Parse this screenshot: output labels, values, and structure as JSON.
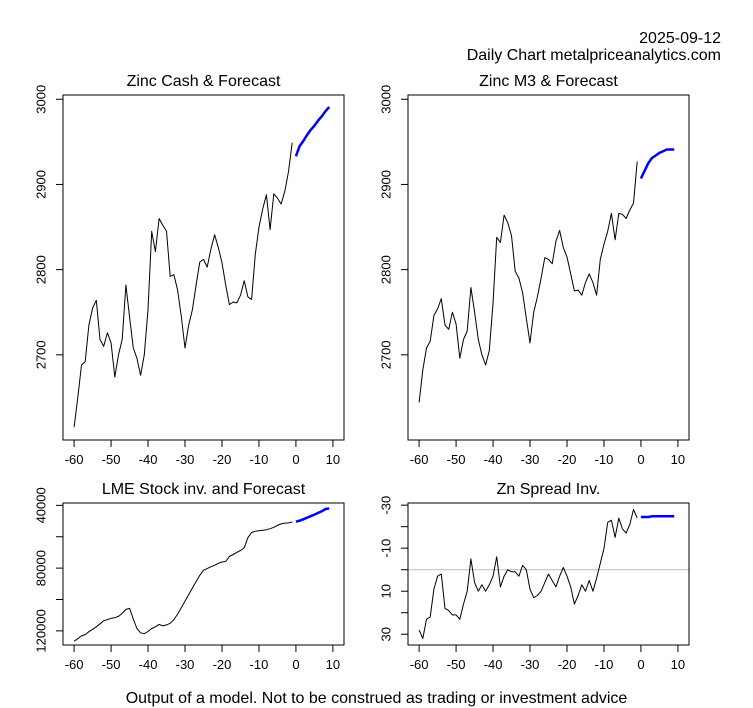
{
  "header": {
    "date": "2025-09-12",
    "subtitle": "Daily Chart metalpriceanalytics.com"
  },
  "footer": "Output of a model. Not to be construed as trading or investment advice",
  "colors": {
    "history": "#000000",
    "forecast": "#0000ff",
    "zero_line": "#bebebe",
    "axis": "#000000"
  },
  "chart_data": [
    {
      "id": "zinc-cash",
      "type": "line",
      "title": "Zinc Cash & Forecast",
      "xlabel": "",
      "ylabel": "",
      "xlim": [
        -63,
        13
      ],
      "ylim": [
        2600,
        3005
      ],
      "inverted_y": false,
      "xticks": [
        -60,
        -50,
        -40,
        -30,
        -20,
        -10,
        0,
        10
      ],
      "yticks": [
        2700,
        2800,
        2900,
        3000
      ],
      "ytick_labels": [
        "2700",
        "2800",
        "2900",
        "3000"
      ],
      "grid": false,
      "series": [
        {
          "name": "history",
          "color": "#000000",
          "x": [
            -60,
            -59,
            -58,
            -57,
            -56,
            -55,
            -54,
            -53,
            -52,
            -51,
            -50,
            -49,
            -48,
            -47,
            -46,
            -45,
            -44,
            -43,
            -42,
            -41,
            -40,
            -39,
            -38,
            -37,
            -36,
            -35,
            -34,
            -33,
            -32,
            -31,
            -30,
            -29,
            -28,
            -27,
            -26,
            -25,
            -24,
            -23,
            -22,
            -21,
            -20,
            -19,
            -18,
            -17,
            -16,
            -15,
            -14,
            -13,
            -12,
            -11,
            -10,
            -9,
            -8,
            -7,
            -6,
            -5,
            -4,
            -3,
            -2,
            -1
          ],
          "y": [
            2615,
            2650,
            2688,
            2692,
            2735,
            2755,
            2764,
            2718,
            2710,
            2726,
            2714,
            2674,
            2700,
            2718,
            2782,
            2744,
            2708,
            2696,
            2676,
            2700,
            2753,
            2845,
            2821,
            2860,
            2852,
            2845,
            2792,
            2794,
            2776,
            2745,
            2708,
            2735,
            2753,
            2782,
            2809,
            2812,
            2803,
            2824,
            2841,
            2826,
            2808,
            2782,
            2759,
            2762,
            2761,
            2770,
            2787,
            2768,
            2765,
            2818,
            2850,
            2871,
            2888,
            2847,
            2889,
            2884,
            2877,
            2892,
            2915,
            2949
          ]
        },
        {
          "name": "forecast",
          "color": "#0000ff",
          "x": [
            0,
            1,
            2,
            3,
            4,
            5,
            6,
            7,
            8,
            9
          ],
          "y": [
            2933,
            2945,
            2951,
            2958,
            2964,
            2969,
            2975,
            2980,
            2986,
            2991
          ]
        }
      ]
    },
    {
      "id": "zinc-m3",
      "type": "line",
      "title": "Zinc M3 & Forecast",
      "xlabel": "",
      "ylabel": "",
      "xlim": [
        -63,
        13
      ],
      "ylim": [
        2600,
        3005
      ],
      "inverted_y": false,
      "xticks": [
        -60,
        -50,
        -40,
        -30,
        -20,
        -10,
        0,
        10
      ],
      "yticks": [
        2700,
        2800,
        2900,
        3000
      ],
      "ytick_labels": [
        "2700",
        "2800",
        "2900",
        "3000"
      ],
      "grid": false,
      "series": [
        {
          "name": "history",
          "color": "#000000",
          "x": [
            -60,
            -59,
            -58,
            -57,
            -56,
            -55,
            -54,
            -53,
            -52,
            -51,
            -50,
            -49,
            -48,
            -47,
            -46,
            -45,
            -44,
            -43,
            -42,
            -41,
            -40,
            -39,
            -38,
            -37,
            -36,
            -35,
            -34,
            -33,
            -32,
            -31,
            -30,
            -29,
            -28,
            -27,
            -26,
            -25,
            -24,
            -23,
            -22,
            -21,
            -20,
            -19,
            -18,
            -17,
            -16,
            -15,
            -14,
            -13,
            -12,
            -11,
            -10,
            -9,
            -8,
            -7,
            -6,
            -5,
            -4,
            -3,
            -2,
            -1
          ],
          "y": [
            2644,
            2682,
            2708,
            2716,
            2746,
            2754,
            2766,
            2735,
            2730,
            2750,
            2736,
            2696,
            2718,
            2728,
            2779,
            2750,
            2718,
            2700,
            2688,
            2705,
            2760,
            2838,
            2832,
            2864,
            2855,
            2840,
            2798,
            2790,
            2773,
            2743,
            2714,
            2750,
            2768,
            2790,
            2814,
            2812,
            2807,
            2833,
            2846,
            2826,
            2815,
            2795,
            2775,
            2776,
            2770,
            2785,
            2795,
            2785,
            2770,
            2812,
            2830,
            2845,
            2866,
            2835,
            2866,
            2865,
            2860,
            2870,
            2878,
            2927
          ]
        },
        {
          "name": "forecast",
          "color": "#0000ff",
          "x": [
            0,
            1,
            2,
            3,
            4,
            5,
            6,
            7,
            8,
            9
          ],
          "y": [
            2907,
            2916,
            2925,
            2931,
            2934,
            2937,
            2939,
            2941,
            2941,
            2941
          ]
        }
      ]
    },
    {
      "id": "lme-stock",
      "type": "line",
      "title": "LME Stock inv. and Forecast",
      "xlabel": "",
      "ylabel": "",
      "xlim": [
        -63,
        13
      ],
      "ylim": [
        129000,
        38500
      ],
      "inverted_y": true,
      "xticks": [
        -60,
        -50,
        -40,
        -30,
        -20,
        -10,
        0,
        10
      ],
      "yticks": [
        40000,
        60000,
        80000,
        100000,
        120000
      ],
      "ytick_labels": [
        "40000",
        "",
        "80000",
        "",
        "120000"
      ],
      "grid": false,
      "series": [
        {
          "name": "history",
          "color": "#000000",
          "x": [
            -60,
            -59,
            -58,
            -57,
            -56,
            -55,
            -54,
            -53,
            -52,
            -51,
            -50,
            -49,
            -48,
            -47,
            -46,
            -45,
            -44,
            -43,
            -42,
            -41,
            -40,
            -39,
            -38,
            -37,
            -36,
            -35,
            -34,
            -33,
            -32,
            -31,
            -30,
            -29,
            -28,
            -27,
            -26,
            -25,
            -24,
            -23,
            -22,
            -21,
            -20,
            -19,
            -18,
            -17,
            -16,
            -15,
            -14,
            -13,
            -12,
            -11,
            -10,
            -9,
            -8,
            -7,
            -6,
            -5,
            -4,
            -3,
            -2,
            -1
          ],
          "y": [
            126600,
            125000,
            123200,
            122400,
            120500,
            119000,
            117400,
            115500,
            113500,
            112800,
            112000,
            111600,
            110800,
            108800,
            106300,
            105600,
            112500,
            118500,
            121200,
            121800,
            120400,
            118500,
            117400,
            115900,
            116800,
            116200,
            115200,
            112800,
            109300,
            105200,
            101000,
            96900,
            92700,
            88500,
            84600,
            81300,
            80300,
            79100,
            78200,
            76900,
            76100,
            75800,
            72600,
            71300,
            70000,
            68800,
            67100,
            60600,
            57300,
            56500,
            56200,
            55900,
            55500,
            54900,
            54000,
            52800,
            51800,
            51300,
            51200,
            50700
          ]
        },
        {
          "name": "forecast",
          "color": "#0000ff",
          "x": [
            0,
            1,
            2,
            3,
            4,
            5,
            6,
            7,
            8,
            9
          ],
          "y": [
            50400,
            49800,
            48900,
            47900,
            46900,
            45900,
            44800,
            43700,
            42300,
            42000
          ]
        }
      ]
    },
    {
      "id": "zn-spread",
      "type": "line",
      "title": "Zn Spread Inv.",
      "xlabel": "",
      "ylabel": "",
      "xlim": [
        -63,
        13
      ],
      "ylim": [
        35,
        -31
      ],
      "inverted_y": true,
      "xticks": [
        -60,
        -50,
        -40,
        -30,
        -20,
        -10,
        0,
        10
      ],
      "yticks": [
        -30,
        -20,
        -10,
        0,
        10,
        20,
        30
      ],
      "ytick_labels": [
        "-30",
        "",
        "-10",
        "",
        "10",
        "",
        "30"
      ],
      "hline": 0,
      "grid": false,
      "series": [
        {
          "name": "history",
          "color": "#000000",
          "x": [
            -60,
            -59,
            -58,
            -57,
            -56,
            -55,
            -54,
            -53,
            -52,
            -51,
            -50,
            -49,
            -48,
            -47,
            -46,
            -45,
            -44,
            -43,
            -42,
            -41,
            -40,
            -39,
            -38,
            -37,
            -36,
            -35,
            -34,
            -33,
            -32,
            -31,
            -30,
            -29,
            -28,
            -27,
            -26,
            -25,
            -24,
            -23,
            -22,
            -21,
            -20,
            -19,
            -18,
            -17,
            -16,
            -15,
            -14,
            -13,
            -12,
            -11,
            -10,
            -9,
            -8,
            -7,
            -6,
            -5,
            -4,
            -3,
            -2,
            -1
          ],
          "y": [
            28,
            32,
            23,
            22,
            9,
            3,
            2,
            18,
            19,
            21,
            21,
            23,
            16,
            10,
            -5,
            6,
            10,
            7,
            10,
            7,
            3,
            -6,
            8,
            3,
            0,
            1,
            1,
            3,
            -2,
            0,
            9,
            13,
            12,
            10,
            6,
            2,
            5,
            8,
            3,
            -1,
            3,
            8,
            16,
            12,
            7,
            10,
            5,
            10,
            4,
            -3,
            -10,
            -22,
            -23,
            -15,
            -24,
            -19,
            -17,
            -21,
            -28,
            -24
          ]
        },
        {
          "name": "forecast",
          "color": "#0000ff",
          "x": [
            0,
            1,
            2,
            3,
            4,
            5,
            6,
            7,
            8,
            9
          ],
          "y": [
            -24.5,
            -24.5,
            -24.5,
            -24.8,
            -24.8,
            -24.8,
            -24.8,
            -24.8,
            -24.8,
            -24.8
          ]
        }
      ]
    }
  ]
}
